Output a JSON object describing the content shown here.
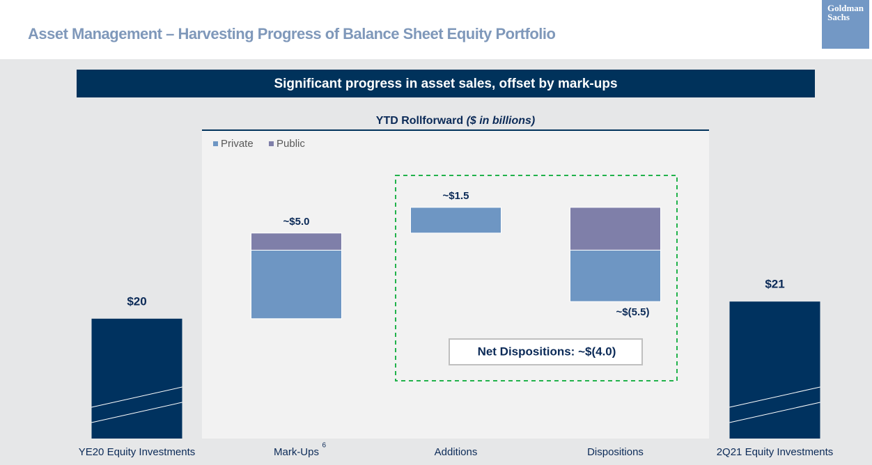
{
  "header": {
    "title": "Asset Management – Harvesting Progress of Balance Sheet Equity Portfolio",
    "logo": [
      "Goldman",
      "Sachs"
    ]
  },
  "banner": "Significant progress in asset sales, offset by mark-ups",
  "chart_data": {
    "type": "waterfall",
    "title": "YTD Rollforward",
    "title_units": "($ in billions)",
    "categories": [
      "YE20 Equity Investments",
      "Mark-Ups",
      "Additions",
      "Dispositions",
      "2Q21 Equity Investments"
    ],
    "category_footnote": "6",
    "values": [
      20,
      5.0,
      1.5,
      -5.5,
      21
    ],
    "value_labels": [
      "$20",
      "~$5.0",
      "~$1.5",
      "~$(5.5)",
      "$21"
    ],
    "total_color": "#00325f",
    "series": [
      {
        "name": "Private",
        "color": "#6e96c3",
        "values": [
          null,
          4.0,
          1.5,
          -3.0,
          null
        ]
      },
      {
        "name": "Public",
        "color": "#7f7fa9",
        "values": [
          null,
          1.0,
          null,
          -2.5,
          null
        ]
      }
    ],
    "annotation": "Net Dispositions: ~$(4.0)",
    "ylim": [
      13,
      27
    ]
  }
}
